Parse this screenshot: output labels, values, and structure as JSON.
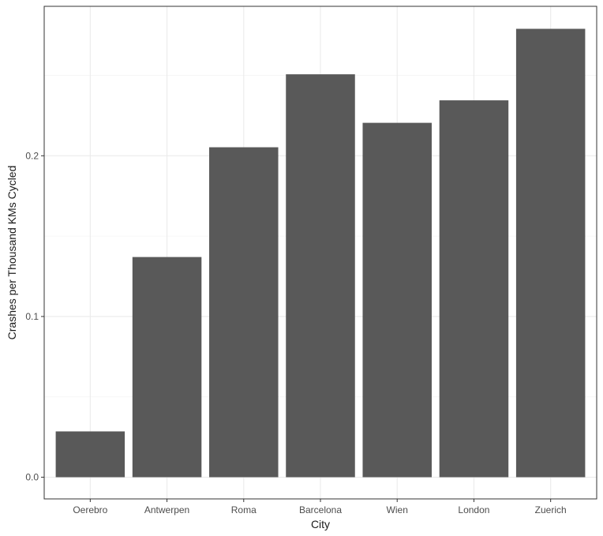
{
  "chart_data": {
    "type": "bar",
    "title": "",
    "xlabel": "City",
    "ylabel": "Crashes per Thousand KMs Cycled",
    "categories": [
      "Oerebro",
      "Antwerpen",
      "Roma",
      "Barcelona",
      "Wien",
      "London",
      "Zuerich"
    ],
    "values": [
      0.0285,
      0.137,
      0.2053,
      0.2507,
      0.2205,
      0.2345,
      0.279
    ],
    "ylim": [
      -0.0135,
      0.293
    ],
    "yticks": [
      0.0,
      0.1,
      0.2
    ],
    "ytick_labels": [
      "0.0",
      "0.1",
      "0.2"
    ],
    "grid": true,
    "legend": "none",
    "bar_color": "#595959",
    "grid_major_color": "#ebebeb",
    "grid_minor_color": "#f4f4f4",
    "panel_border_color": "#333333"
  }
}
